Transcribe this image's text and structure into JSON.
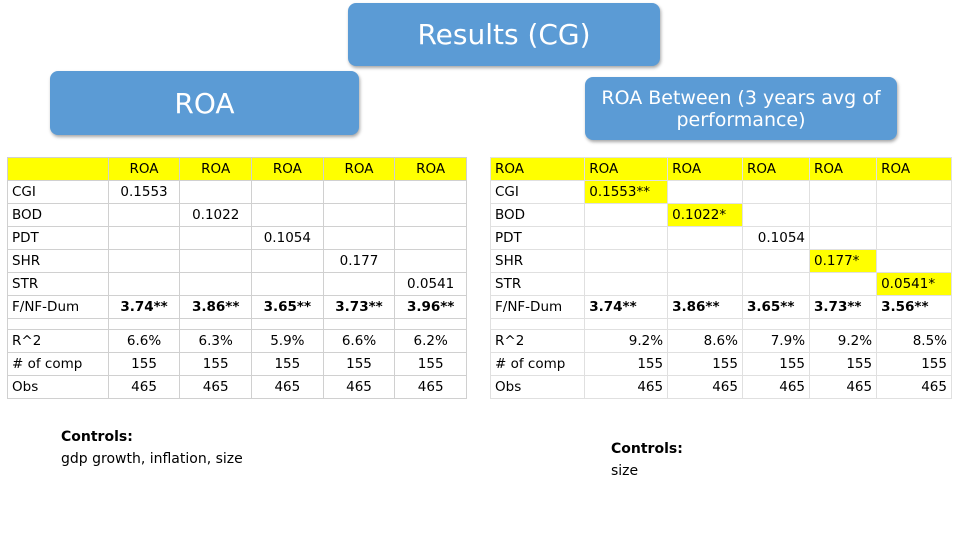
{
  "title": "Results (CG)",
  "left_heading": "ROA",
  "right_heading": "ROA Between (3 years avg of performance)",
  "left_table": {
    "headers": [
      "",
      "ROA",
      "ROA",
      "ROA",
      "ROA",
      "ROA"
    ],
    "rows": [
      [
        "CGI",
        "0.1553",
        "",
        "",
        "",
        ""
      ],
      [
        "BOD",
        "",
        "0.1022",
        "",
        "",
        ""
      ],
      [
        "PDT",
        "",
        "",
        "0.1054",
        "",
        ""
      ],
      [
        "SHR",
        "",
        "",
        "",
        "0.177",
        ""
      ],
      [
        "STR",
        "",
        "",
        "",
        "",
        "0.0541"
      ],
      [
        "F/NF-Dum",
        "3.74**",
        "3.86**",
        "3.65**",
        "3.73**",
        "3.96**"
      ]
    ],
    "stats": [
      [
        "R^2",
        "6.6%",
        "6.3%",
        "5.9%",
        "6.6%",
        "6.2%"
      ],
      [
        "# of comp",
        "155",
        "155",
        "155",
        "155",
        "155"
      ],
      [
        "Obs",
        "465",
        "465",
        "465",
        "465",
        "465"
      ]
    ]
  },
  "right_table": {
    "headers": [
      "ROA",
      "ROA",
      "ROA",
      "ROA",
      "ROA",
      "ROA"
    ],
    "rows": [
      [
        "CGI",
        "0.1553**",
        "",
        "",
        "",
        ""
      ],
      [
        "BOD",
        "",
        "0.1022*",
        "",
        "",
        ""
      ],
      [
        "PDT",
        "",
        "",
        "0.1054",
        "",
        ""
      ],
      [
        "SHR",
        "",
        "",
        "",
        "0.177*",
        ""
      ],
      [
        "STR",
        "",
        "",
        "",
        "",
        "0.0541*"
      ],
      [
        "F/NF-Dum",
        "3.74**",
        "3.86**",
        "3.65**",
        "3.73**",
        "3.56**"
      ]
    ],
    "stats": [
      [
        "R^2",
        "9.2%",
        "8.6%",
        "7.9%",
        "9.2%",
        "8.5%"
      ],
      [
        "# of comp",
        "155",
        "155",
        "155",
        "155",
        "155"
      ],
      [
        "Obs",
        "465",
        "465",
        "465",
        "465",
        "465"
      ]
    ]
  },
  "left_controls": {
    "label": "Controls:",
    "text": "gdp growth, inflation, size"
  },
  "right_controls": {
    "label": "Controls:",
    "text": "size"
  },
  "colors": {
    "bubble": "#5b9bd5",
    "highlight": "#ffff00"
  }
}
